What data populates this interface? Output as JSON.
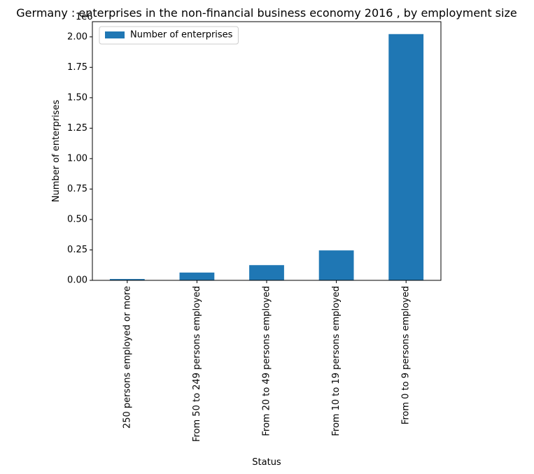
{
  "chart_data": {
    "type": "bar",
    "title": "Germany : enterprises in the non-financial business economy 2016 , by employment size",
    "xlabel": "Status",
    "ylabel": "Number of enterprises",
    "offset_label": "1e6",
    "categories": [
      "250 persons employed or more",
      "From 50 to 249 persons employed",
      "From 20 to 49 persons employed",
      "From 10 to 19 persons employed",
      "From 0 to 9 persons employed"
    ],
    "series": [
      {
        "name": "Number of enterprises",
        "values": [
          11000,
          64000,
          125000,
          246000,
          2023000
        ]
      }
    ],
    "ylim": [
      0,
      2125000
    ],
    "yticks": [
      0,
      250000,
      500000,
      750000,
      1000000,
      1250000,
      1500000,
      1750000,
      2000000
    ],
    "ytick_labels": [
      "0.00",
      "0.25",
      "0.50",
      "0.75",
      "1.00",
      "1.25",
      "1.50",
      "1.75",
      "2.00"
    ],
    "grid": false,
    "legend_position": "upper-left",
    "bar_color": "#1f77b4"
  }
}
